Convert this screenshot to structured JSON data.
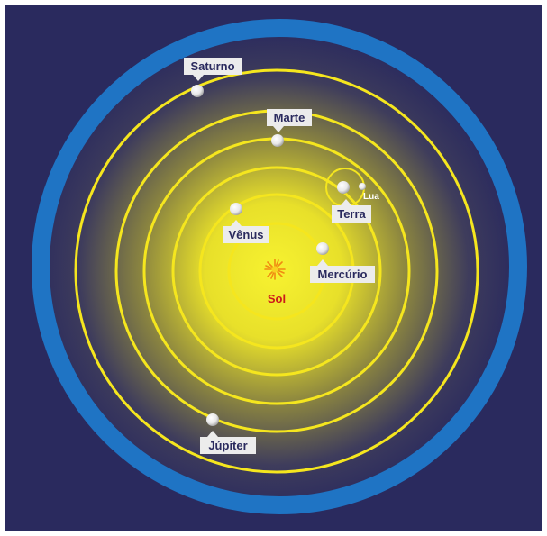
{
  "labels": {
    "sun": "Sol",
    "mercury": "Mercúrio",
    "venus": "Vênus",
    "earth": "Terra",
    "moon": "Lua",
    "mars": "Marte",
    "jupiter": "Júpiter",
    "saturn": "Saturno"
  },
  "colors": {
    "background": "#2a2a5e",
    "orbit": "#f5e61e",
    "firmament": "#1f74c4",
    "sun_glow": "#f3ef2a",
    "sun_label": "#cc1a1a",
    "planet": "#ffffff",
    "label_box": "#ececec",
    "label_text": "#2a2a5e"
  }
}
